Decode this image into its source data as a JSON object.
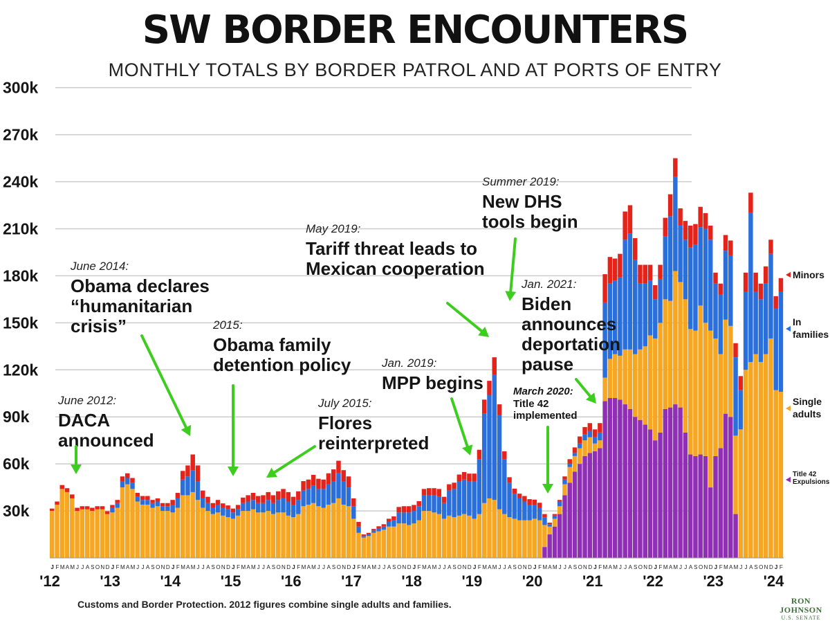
{
  "title": "SW BORDER ENCOUNTERS",
  "subtitle": "MONTHLY TOTALS BY BORDER PATROL AND AT PORTS OF ENTRY",
  "source": "Customs and Border Protection. 2012 figures combine single adults and families.",
  "logo": {
    "line1": "RON JOHNSON",
    "line2": "U.S. SENATE"
  },
  "colors": {
    "expulsions": "#8e2fb4",
    "single": "#f5a623",
    "families": "#2b6fdb",
    "minors": "#e4231b",
    "arrow": "#3ccd1f",
    "grid": "#cccccc"
  },
  "chart_data": {
    "type": "bar",
    "stacked": true,
    "ylim": [
      0,
      310000
    ],
    "yticks": [
      30000,
      60000,
      90000,
      120000,
      150000,
      180000,
      210000,
      240000,
      270000,
      300000
    ],
    "ytick_labels": [
      "30k",
      "60k",
      "90k",
      "120k",
      "150k",
      "180k",
      "210k",
      "240k",
      "270k",
      "300k"
    ],
    "start_month": "2012-01",
    "end_month": "2024-02",
    "year_labels": [
      "'12",
      "'13",
      "'14",
      "'15",
      "'16",
      "'17",
      "'18",
      "'19",
      "'20",
      "'21",
      "'22",
      "'23",
      "'24"
    ],
    "month_letters": [
      "J",
      "F",
      "M",
      "A",
      "M",
      "J",
      "J",
      "A",
      "S",
      "O",
      "N",
      "D"
    ],
    "series": [
      {
        "name": "Title 42 Expulsions",
        "values": [
          0,
          0,
          0,
          0,
          0,
          0,
          0,
          0,
          0,
          0,
          0,
          0,
          0,
          0,
          0,
          0,
          0,
          0,
          0,
          0,
          0,
          0,
          0,
          0,
          0,
          0,
          0,
          0,
          0,
          0,
          0,
          0,
          0,
          0,
          0,
          0,
          0,
          0,
          0,
          0,
          0,
          0,
          0,
          0,
          0,
          0,
          0,
          0,
          0,
          0,
          0,
          0,
          0,
          0,
          0,
          0,
          0,
          0,
          0,
          0,
          0,
          0,
          0,
          0,
          0,
          0,
          0,
          0,
          0,
          0,
          0,
          0,
          0,
          0,
          0,
          0,
          0,
          0,
          0,
          0,
          0,
          0,
          0,
          0,
          0,
          0,
          0,
          0,
          0,
          0,
          0,
          0,
          0,
          0,
          0,
          0,
          0,
          0,
          7000,
          15000,
          20000,
          28000,
          40000,
          48000,
          55000,
          60000,
          65000,
          67000,
          68000,
          70000,
          100000,
          102000,
          102000,
          101000,
          98000,
          95000,
          90000,
          88000,
          85000,
          82000,
          75000,
          80000,
          95000,
          96000,
          98000,
          96000,
          80000,
          66000,
          65000,
          66000,
          65000,
          45000,
          65000,
          70000,
          92000,
          90000,
          28000,
          0,
          0,
          0,
          0,
          0,
          0,
          0,
          0,
          0
        ]
      },
      {
        "name": "Single adults",
        "values": [
          30000,
          34000,
          44000,
          42000,
          38000,
          30000,
          31000,
          31000,
          30000,
          31000,
          31000,
          28000,
          29000,
          32000,
          45000,
          47000,
          44000,
          36000,
          34000,
          34000,
          32000,
          33000,
          30000,
          30000,
          29000,
          32000,
          40000,
          40000,
          42000,
          37000,
          32000,
          30000,
          28000,
          29000,
          27000,
          26000,
          25000,
          27000,
          30000,
          30000,
          31000,
          29000,
          29000,
          30000,
          28000,
          29000,
          29000,
          27000,
          26000,
          28000,
          33000,
          34000,
          35000,
          33000,
          32000,
          34000,
          35000,
          38000,
          34000,
          33000,
          25000,
          16000,
          13000,
          14000,
          16000,
          17000,
          18000,
          20000,
          20000,
          22000,
          22000,
          21000,
          22000,
          24000,
          30000,
          30000,
          29000,
          28000,
          25000,
          27000,
          26000,
          27000,
          28000,
          27000,
          25000,
          28000,
          35000,
          38000,
          37000,
          31000,
          28000,
          26000,
          25000,
          24000,
          24000,
          24000,
          25000,
          24000,
          14000,
          5000,
          5000,
          5000,
          7000,
          10000,
          10000,
          10000,
          10000,
          10000,
          5000,
          5000,
          15000,
          25000,
          28000,
          28000,
          35000,
          38000,
          40000,
          45000,
          50000,
          60000,
          65000,
          70000,
          70000,
          68000,
          85000,
          80000,
          85000,
          80000,
          80000,
          95000,
          85000,
          100000,
          75000,
          60000,
          60000,
          58000,
          50000,
          82000,
          120000,
          125000,
          130000,
          125000,
          130000,
          140000,
          107000,
          106000
        ]
      },
      {
        "name": "In families",
        "values": [
          0,
          0,
          0,
          0,
          0,
          0,
          0,
          0,
          0,
          0,
          0,
          0,
          3000,
          3000,
          4000,
          4000,
          4000,
          3000,
          3000,
          3000,
          3000,
          3000,
          3000,
          3000,
          5000,
          6000,
          10000,
          12000,
          14000,
          12000,
          6000,
          5000,
          4000,
          5000,
          5000,
          5000,
          4000,
          4000,
          5000,
          6000,
          6000,
          6000,
          6000,
          7000,
          7000,
          8000,
          9000,
          9000,
          8000,
          9000,
          10000,
          10000,
          11000,
          11000,
          12000,
          13000,
          14000,
          16000,
          15000,
          12000,
          8000,
          4000,
          1000,
          1000,
          1500,
          2000,
          2000,
          3000,
          4000,
          7000,
          7000,
          8000,
          8000,
          9000,
          10000,
          10000,
          11000,
          11000,
          10000,
          16000,
          18000,
          22000,
          22000,
          22000,
          24000,
          35000,
          57000,
          66000,
          80000,
          60000,
          35000,
          22000,
          16000,
          14000,
          12000,
          10000,
          9000,
          8000,
          5000,
          1500,
          2000,
          3000,
          3000,
          2000,
          2000,
          3000,
          4000,
          4000,
          4000,
          5000,
          48000,
          48000,
          47000,
          50000,
          70000,
          74000,
          60000,
          42000,
          40000,
          35000,
          25000,
          28000,
          40000,
          54000,
          60000,
          36000,
          38000,
          52000,
          55000,
          50000,
          60000,
          58000,
          35000,
          38000,
          44000,
          45000,
          50000,
          25000,
          50000,
          95000,
          40000,
          40000,
          45000,
          54000,
          52000,
          64000
        ]
      },
      {
        "name": "Minors",
        "values": [
          1500,
          2000,
          2500,
          2500,
          2500,
          2000,
          2000,
          2000,
          2000,
          2000,
          2000,
          1800,
          1800,
          2000,
          3000,
          3000,
          3000,
          2500,
          2500,
          2500,
          2000,
          2000,
          2000,
          2000,
          3000,
          3500,
          5500,
          7000,
          10000,
          10000,
          5000,
          4000,
          3000,
          3000,
          2800,
          2500,
          2500,
          2800,
          3500,
          4000,
          4500,
          4500,
          5000,
          5000,
          5000,
          5500,
          6000,
          6000,
          5000,
          5500,
          6000,
          6000,
          7000,
          6500,
          6000,
          7000,
          7500,
          8000,
          7000,
          7000,
          5000,
          3000,
          1000,
          1000,
          1000,
          1200,
          1500,
          2000,
          2500,
          3500,
          4000,
          4000,
          3800,
          3200,
          4000,
          4500,
          4500,
          5000,
          4000,
          4000,
          4000,
          4200,
          4800,
          4800,
          4800,
          6000,
          9000,
          9000,
          11000,
          7000,
          5000,
          3500,
          3200,
          3000,
          3500,
          3500,
          3200,
          3200,
          2000,
          1000,
          1000,
          1000,
          2000,
          3000,
          3500,
          4500,
          4500,
          5000,
          5000,
          6000,
          18000,
          17000,
          14000,
          15000,
          18000,
          18000,
          14000,
          12000,
          12000,
          10000,
          9000,
          9000,
          12000,
          14000,
          12000,
          11000,
          12000,
          14000,
          13000,
          13000,
          10000,
          9000,
          7000,
          7000,
          10000,
          9500,
          9000,
          9000,
          12000,
          13000,
          12000,
          10000,
          11000,
          9000,
          8000,
          8500
        ]
      }
    ],
    "annotations": [
      {
        "small": "June 2012:",
        "lines": [
          "DACA",
          "announced"
        ]
      },
      {
        "small": "June 2014:",
        "lines": [
          "Obama declares",
          "“humanitarian",
          "crisis”"
        ]
      },
      {
        "small": "2015:",
        "lines": [
          "Obama family",
          "detention policy"
        ]
      },
      {
        "small": "July 2015:",
        "lines": [
          "Flores",
          "reinterpreted"
        ]
      },
      {
        "small": "May 2019:",
        "lines": [
          "Tariff threat leads to",
          "Mexican cooperation"
        ]
      },
      {
        "small": "Summer 2019:",
        "lines": [
          "New DHS",
          "tools begin"
        ]
      },
      {
        "small": "Jan. 2019:",
        "lines": [
          "MPP begins"
        ]
      },
      {
        "small": "March 2020:",
        "lines": [
          "Title 42",
          "implemented"
        ]
      },
      {
        "small": "Jan. 2021:",
        "lines": [
          "Biden",
          "announces",
          "deportation",
          "pause"
        ]
      }
    ],
    "legend": [
      {
        "label": "Minors",
        "lines": [
          "Minors"
        ]
      },
      {
        "label": "In families",
        "lines": [
          "In",
          "families"
        ]
      },
      {
        "label": "Single adults",
        "lines": [
          "Single",
          "adults"
        ]
      },
      {
        "label": "Title 42 Expulsions",
        "lines": [
          "Title 42",
          "Expulsions"
        ]
      }
    ]
  }
}
